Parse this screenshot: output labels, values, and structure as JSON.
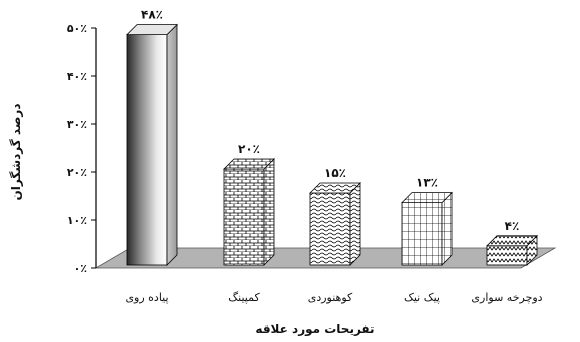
{
  "chart_data": {
    "type": "bar",
    "style": "3d",
    "categories": [
      "پیاده روی",
      "کمپینگ",
      "کوهنوردی",
      "پیک نیک",
      "دوچرخه سواری"
    ],
    "values": [
      48,
      20,
      15,
      13,
      4
    ],
    "value_labels": [
      "۴۸٪",
      "۲۰٪",
      "۱۵٪",
      "۱۳٪",
      "۴٪"
    ],
    "ylim": [
      0,
      50
    ],
    "y_ticks": [
      0,
      10,
      20,
      30,
      40,
      50
    ],
    "y_tick_labels": [
      "۰٪",
      "۱۰٪",
      "۲۰٪",
      "۳۰٪",
      "۴۰٪",
      "۵۰٪"
    ],
    "xlabel": "تفریحات مورد علاقه",
    "ylabel": "درصد گردشگران",
    "grid": false,
    "legend": "none",
    "fills": [
      "gradient",
      "brick",
      "wave",
      "grid",
      "zigzag"
    ],
    "colors": {
      "floor": "#b3b3b3",
      "axis": "#000000",
      "bar_stroke": "#000000"
    }
  }
}
